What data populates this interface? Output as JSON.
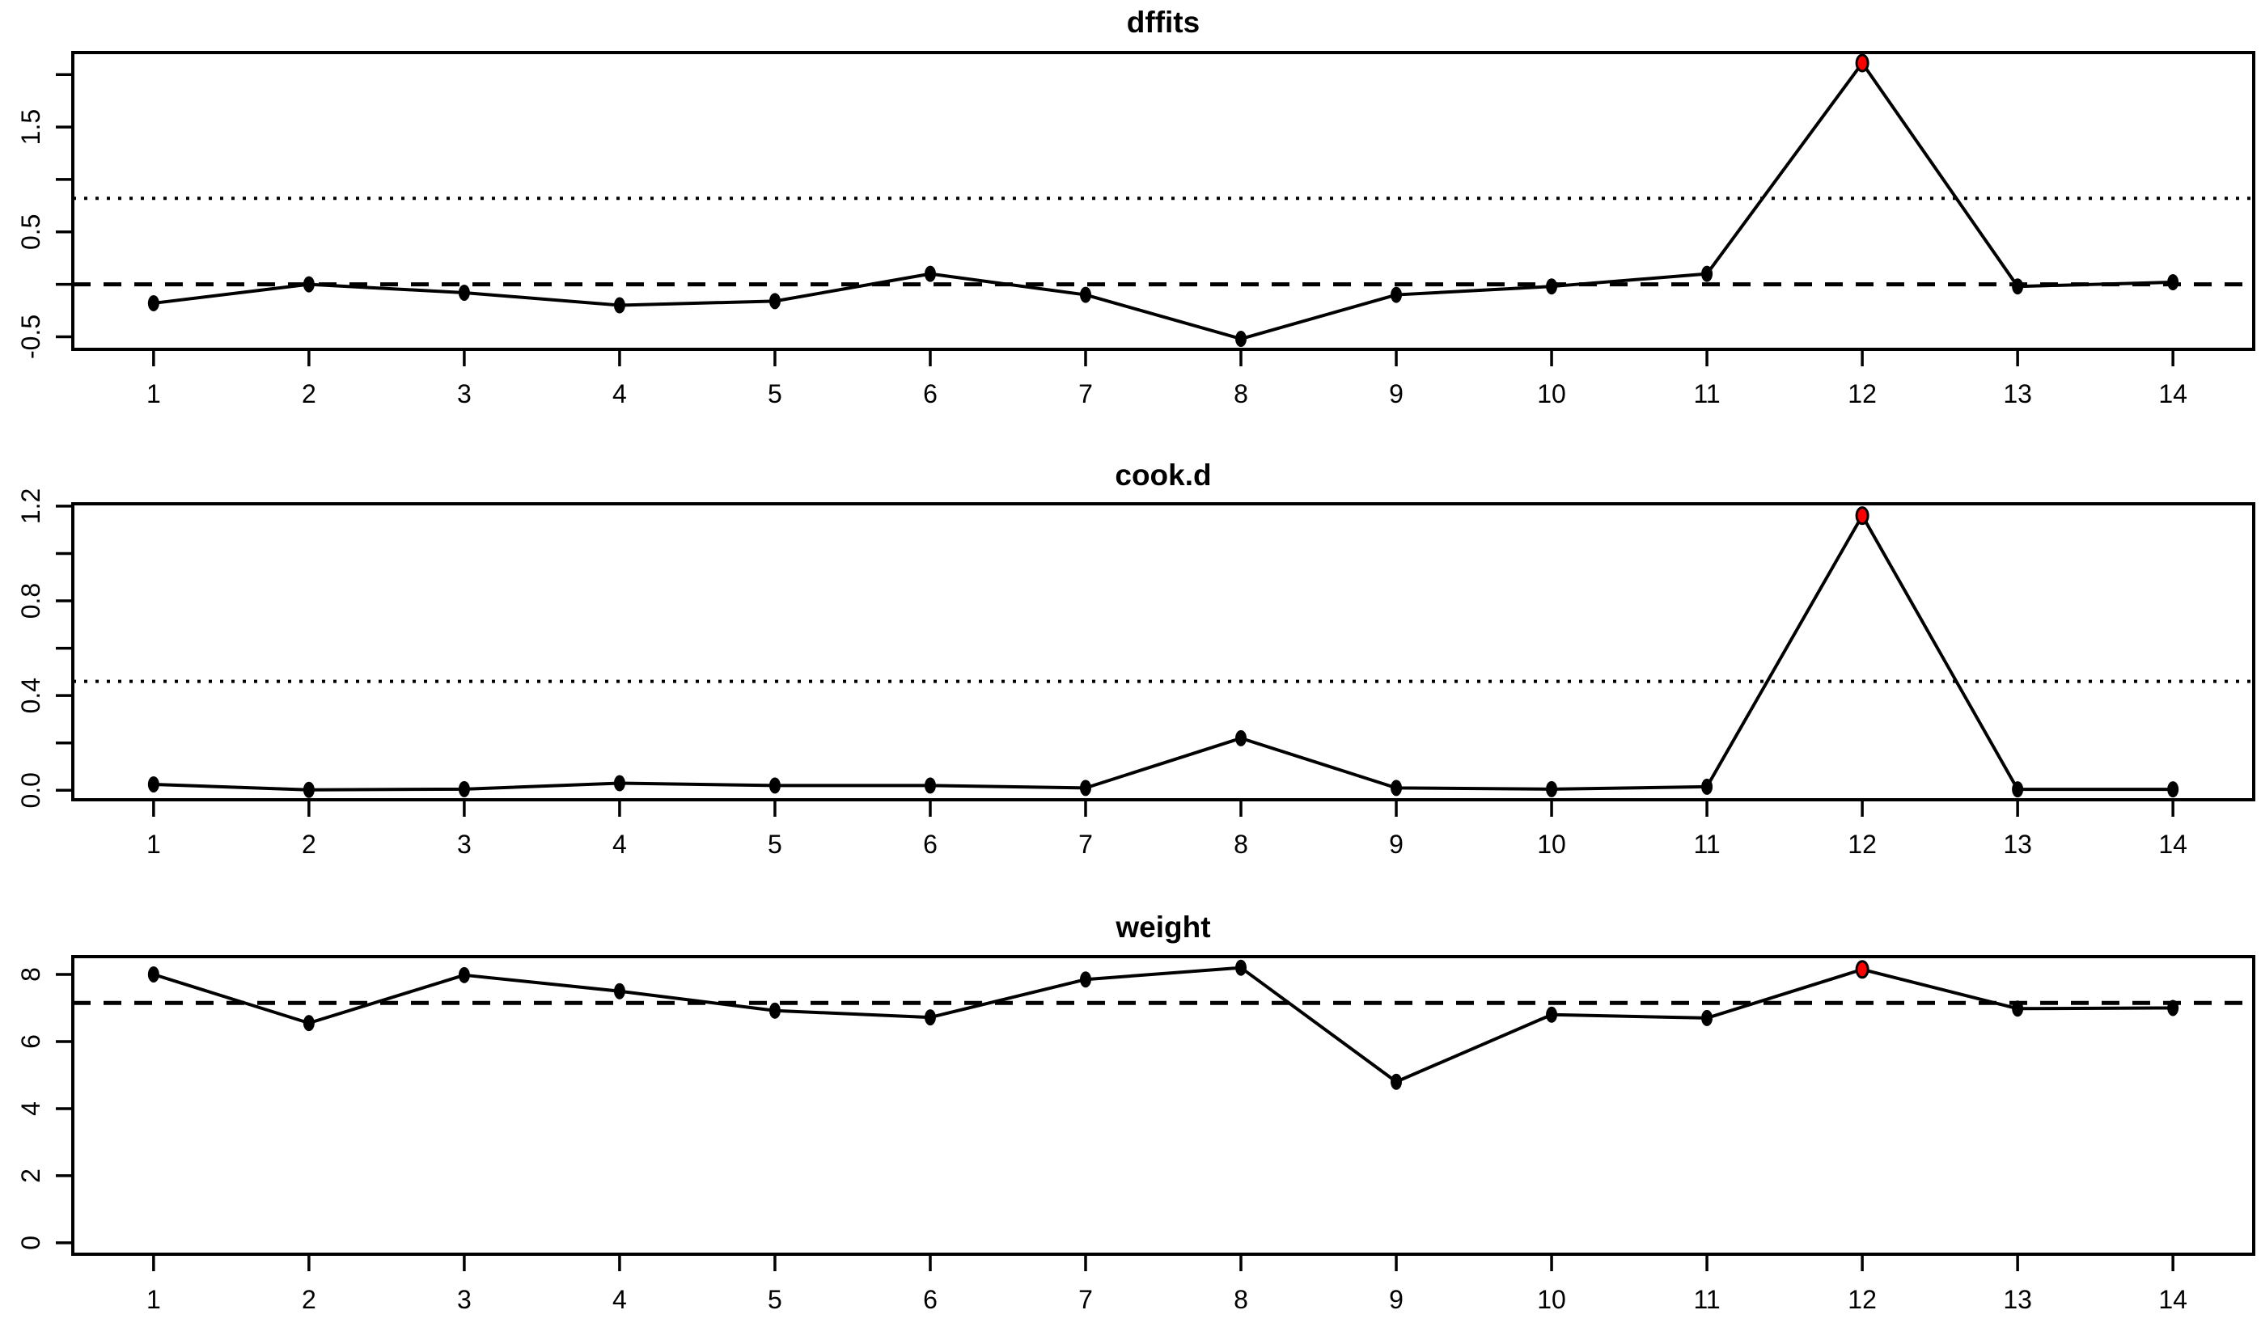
{
  "figure": {
    "background": "#ffffff",
    "line_color": "#000000",
    "point_color": "#000000",
    "outlier_color": "#ff0000",
    "panel_count": 3
  },
  "chart_data": [
    {
      "type": "line",
      "title": "dffits",
      "xlabel": "",
      "ylabel": "",
      "x": [
        1,
        2,
        3,
        4,
        5,
        6,
        7,
        8,
        9,
        10,
        11,
        12,
        13,
        14
      ],
      "values": [
        -0.18,
        0.0,
        -0.08,
        -0.2,
        -0.16,
        0.1,
        -0.1,
        -0.52,
        -0.1,
        -0.02,
        0.1,
        2.11,
        -0.02,
        0.02
      ],
      "outlier_x": 12,
      "xlim": [
        0.48,
        14.52
      ],
      "ylim": [
        -0.62,
        2.21
      ],
      "xticks": [
        1,
        2,
        3,
        4,
        5,
        6,
        7,
        8,
        9,
        10,
        11,
        12,
        13,
        14
      ],
      "yticks": [
        {
          "v": -0.5,
          "label": "-0.5"
        },
        {
          "v": 0,
          "label": ""
        },
        {
          "v": 0.5,
          "label": "0.5"
        },
        {
          "v": 1,
          "label": ""
        },
        {
          "v": 1.5,
          "label": "1.5"
        },
        {
          "v": 2,
          "label": ""
        }
      ],
      "hlines": [
        {
          "y": 0,
          "style": "dashed"
        },
        {
          "y": 0.82,
          "style": "dotted"
        }
      ],
      "grid": false,
      "legend": null
    },
    {
      "type": "line",
      "title": "cook.d",
      "xlabel": "",
      "ylabel": "",
      "x": [
        1,
        2,
        3,
        4,
        5,
        6,
        7,
        8,
        9,
        10,
        11,
        12,
        13,
        14
      ],
      "values": [
        0.025,
        0.002,
        0.005,
        0.03,
        0.02,
        0.02,
        0.01,
        0.22,
        0.01,
        0.005,
        0.015,
        1.16,
        0.004,
        0.004
      ],
      "outlier_x": 12,
      "xlim": [
        0.48,
        14.52
      ],
      "ylim": [
        -0.04,
        1.21
      ],
      "xticks": [
        1,
        2,
        3,
        4,
        5,
        6,
        7,
        8,
        9,
        10,
        11,
        12,
        13,
        14
      ],
      "yticks": [
        {
          "v": 0,
          "label": "0.0"
        },
        {
          "v": 0.2,
          "label": ""
        },
        {
          "v": 0.4,
          "label": "0.4"
        },
        {
          "v": 0.6,
          "label": ""
        },
        {
          "v": 0.8,
          "label": "0.8"
        },
        {
          "v": 1,
          "label": ""
        },
        {
          "v": 1.2,
          "label": "1.2"
        }
      ],
      "hlines": [
        {
          "y": 0.46,
          "style": "dotted"
        }
      ],
      "grid": false,
      "legend": null
    },
    {
      "type": "line",
      "title": "weight",
      "xlabel": "",
      "ylabel": "",
      "x": [
        1,
        2,
        3,
        4,
        5,
        6,
        7,
        8,
        9,
        10,
        11,
        12,
        13,
        14
      ],
      "values": [
        8.0,
        6.55,
        7.98,
        7.5,
        6.92,
        6.72,
        7.85,
        8.2,
        4.8,
        6.8,
        6.7,
        8.15,
        6.98,
        7.0
      ],
      "outlier_x": 12,
      "xlim": [
        0.48,
        14.52
      ],
      "ylim": [
        -0.34,
        8.53
      ],
      "xticks": [
        1,
        2,
        3,
        4,
        5,
        6,
        7,
        8,
        9,
        10,
        11,
        12,
        13,
        14
      ],
      "yticks": [
        {
          "v": 0,
          "label": "0"
        },
        {
          "v": 2,
          "label": "2"
        },
        {
          "v": 4,
          "label": "4"
        },
        {
          "v": 6,
          "label": "6"
        },
        {
          "v": 8,
          "label": "8"
        }
      ],
      "hlines": [
        {
          "y": 7.15,
          "style": "dashed"
        }
      ],
      "grid": false,
      "legend": null
    }
  ]
}
